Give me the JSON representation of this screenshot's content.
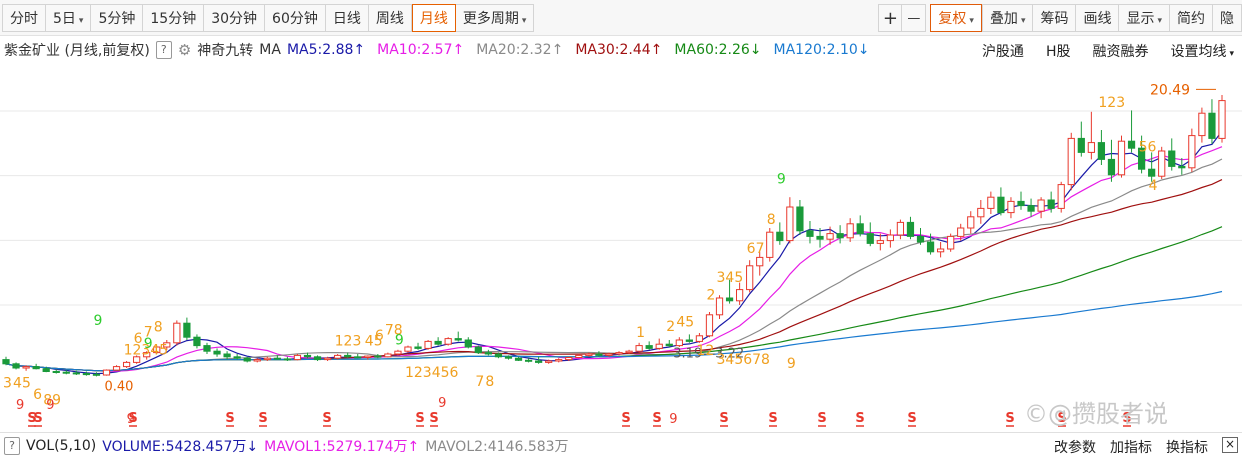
{
  "toolbar": {
    "items": [
      {
        "label": "分时",
        "caret": false,
        "active": false
      },
      {
        "label": "5日",
        "caret": true,
        "active": false
      },
      {
        "label": "5分钟",
        "caret": false,
        "active": false
      },
      {
        "label": "15分钟",
        "caret": false,
        "active": false
      },
      {
        "label": "30分钟",
        "caret": false,
        "active": false
      },
      {
        "label": "60分钟",
        "caret": false,
        "active": false
      },
      {
        "label": "日线",
        "caret": false,
        "active": false
      },
      {
        "label": "周线",
        "caret": false,
        "active": false
      },
      {
        "label": "月线",
        "caret": false,
        "active": true
      },
      {
        "label": "更多周期",
        "caret": true,
        "active": false
      }
    ],
    "right_items": [
      {
        "label": "复权",
        "caret": true
      },
      {
        "label": "叠加",
        "caret": true
      },
      {
        "label": "筹码",
        "caret": false
      },
      {
        "label": "画线",
        "caret": false
      },
      {
        "label": "显示",
        "caret": true
      },
      {
        "label": "简约",
        "caret": false
      },
      {
        "label": "隐",
        "caret": false
      }
    ],
    "plus": "+",
    "minus": "—"
  },
  "legend": {
    "title": "紫金矿业 (月线,前复权)",
    "help": "?",
    "indicator": "神奇九转",
    "ma_label": "MA",
    "ma": [
      {
        "text": "MA5:2.88",
        "arrow": "↑",
        "color": "#1a1aa8"
      },
      {
        "text": "MA10:2.57",
        "arrow": "↑",
        "color": "#e61ee6"
      },
      {
        "text": "MA20:2.32",
        "arrow": "↑",
        "color": "#8a8a8a"
      },
      {
        "text": "MA30:2.44",
        "arrow": "↑",
        "color": "#a01010"
      },
      {
        "text": "MA60:2.26",
        "arrow": "↓",
        "color": "#178a17"
      },
      {
        "text": "MA120:2.10",
        "arrow": "↓",
        "color": "#1a7ad0"
      }
    ],
    "right": [
      "沪股通",
      "H股",
      "融资融券",
      "设置均线"
    ]
  },
  "volume": {
    "help": "?",
    "label": "VOL(5,10)",
    "volume": "VOLUME:5428.457万",
    "volume_arrow": "↓",
    "mavol1": "MAVOL1:5279.174万",
    "mavol1_arrow": "↑",
    "mavol2": "MAVOL2:4146.583万",
    "right": [
      "改参数",
      "加指标",
      "换指标"
    ],
    "close": "×"
  },
  "watermark": "©@攒股者说",
  "colors": {
    "up": "#e8382c",
    "down": "#1a9a3a",
    "active": "#e66000",
    "seq_orange": "#f0a020",
    "seq_green": "#2ecc2e",
    "s_mark": "#e8382c"
  },
  "chart_data": {
    "type": "candlestick",
    "title": "紫金矿业 (月线,前复权)",
    "ylim": [
      0,
      22
    ],
    "annotations": {
      "max_label": "20.49",
      "min_labels": [
        "0.40",
        "3.19",
        "3.22"
      ]
    },
    "ohlc": [
      [
        1.6,
        1.8,
        1.2,
        1.3
      ],
      [
        1.3,
        1.4,
        0.9,
        1.0
      ],
      [
        1.0,
        1.2,
        0.8,
        1.1
      ],
      [
        1.1,
        1.3,
        0.9,
        0.95
      ],
      [
        0.95,
        1.1,
        0.7,
        0.75
      ],
      [
        0.75,
        0.9,
        0.6,
        0.7
      ],
      [
        0.7,
        0.85,
        0.55,
        0.65
      ],
      [
        0.65,
        0.8,
        0.5,
        0.6
      ],
      [
        0.6,
        0.75,
        0.45,
        0.55
      ],
      [
        0.55,
        0.7,
        0.4,
        0.5
      ],
      [
        0.5,
        0.9,
        0.45,
        0.85
      ],
      [
        0.85,
        1.2,
        0.8,
        1.1
      ],
      [
        1.1,
        1.5,
        1.0,
        1.4
      ],
      [
        1.4,
        1.9,
        1.3,
        1.8
      ],
      [
        1.8,
        2.2,
        1.6,
        2.1
      ],
      [
        2.1,
        2.6,
        2.0,
        2.5
      ],
      [
        2.5,
        3.0,
        2.3,
        2.8
      ],
      [
        2.8,
        4.4,
        2.6,
        4.2
      ],
      [
        4.2,
        4.6,
        3.0,
        3.2
      ],
      [
        3.2,
        3.4,
        2.4,
        2.6
      ],
      [
        2.6,
        2.8,
        2.0,
        2.2
      ],
      [
        2.2,
        2.4,
        1.8,
        2.0
      ],
      [
        2.0,
        2.2,
        1.6,
        1.8
      ],
      [
        1.8,
        2.0,
        1.6,
        1.7
      ],
      [
        1.7,
        1.8,
        1.4,
        1.5
      ],
      [
        1.5,
        1.7,
        1.4,
        1.6
      ],
      [
        1.6,
        1.8,
        1.5,
        1.7
      ],
      [
        1.7,
        1.9,
        1.6,
        1.65
      ],
      [
        1.65,
        1.8,
        1.5,
        1.6
      ],
      [
        1.6,
        2.0,
        1.55,
        1.9
      ],
      [
        1.9,
        2.1,
        1.7,
        1.8
      ],
      [
        1.8,
        1.9,
        1.5,
        1.6
      ],
      [
        1.6,
        1.8,
        1.5,
        1.7
      ],
      [
        1.7,
        2.0,
        1.6,
        1.9
      ],
      [
        1.9,
        2.1,
        1.7,
        1.8
      ],
      [
        1.8,
        2.0,
        1.7,
        1.75
      ],
      [
        1.75,
        1.9,
        1.6,
        1.85
      ],
      [
        1.85,
        2.0,
        1.7,
        1.8
      ],
      [
        1.8,
        2.1,
        1.75,
        2.0
      ],
      [
        2.0,
        2.3,
        1.9,
        2.2
      ],
      [
        2.2,
        2.6,
        2.1,
        2.5
      ],
      [
        2.5,
        2.8,
        2.3,
        2.4
      ],
      [
        2.4,
        3.0,
        2.3,
        2.9
      ],
      [
        2.9,
        3.2,
        2.6,
        2.7
      ],
      [
        2.7,
        3.2,
        2.6,
        3.1
      ],
      [
        3.1,
        3.6,
        2.9,
        3.0
      ],
      [
        3.0,
        3.2,
        2.4,
        2.5
      ],
      [
        2.5,
        2.6,
        2.0,
        2.1
      ],
      [
        2.1,
        2.3,
        1.9,
        2.0
      ],
      [
        2.0,
        2.1,
        1.7,
        1.8
      ],
      [
        1.8,
        1.9,
        1.6,
        1.7
      ],
      [
        1.7,
        1.8,
        1.5,
        1.55
      ],
      [
        1.55,
        1.7,
        1.4,
        1.5
      ],
      [
        1.5,
        1.8,
        1.3,
        1.4
      ],
      [
        1.4,
        1.6,
        1.3,
        1.5
      ],
      [
        1.5,
        1.7,
        1.4,
        1.6
      ],
      [
        1.6,
        1.8,
        1.5,
        1.75
      ],
      [
        1.75,
        2.0,
        1.7,
        1.9
      ],
      [
        1.9,
        2.1,
        1.8,
        2.0
      ],
      [
        2.0,
        2.2,
        1.8,
        1.9
      ],
      [
        1.9,
        2.1,
        1.8,
        2.0
      ],
      [
        2.0,
        2.2,
        1.9,
        2.1
      ],
      [
        2.1,
        2.3,
        2.0,
        2.2
      ],
      [
        2.2,
        2.8,
        2.1,
        2.6
      ],
      [
        2.6,
        2.9,
        2.3,
        2.4
      ],
      [
        2.4,
        3.1,
        2.3,
        2.7
      ],
      [
        2.7,
        3.0,
        2.5,
        2.6
      ],
      [
        2.6,
        3.2,
        2.5,
        3.0
      ],
      [
        3.0,
        3.4,
        2.8,
        2.9
      ],
      [
        2.9,
        3.5,
        2.8,
        3.3
      ],
      [
        3.3,
        5.0,
        3.2,
        4.8
      ],
      [
        4.8,
        6.2,
        4.5,
        6.0
      ],
      [
        6.0,
        7.3,
        5.6,
        5.8
      ],
      [
        5.8,
        7.1,
        5.5,
        6.6
      ],
      [
        6.6,
        8.7,
        6.4,
        8.3
      ],
      [
        8.3,
        9.3,
        7.6,
        8.9
      ],
      [
        8.9,
        11.0,
        8.6,
        10.7
      ],
      [
        10.7,
        11.4,
        9.8,
        10.1
      ],
      [
        10.1,
        13.2,
        9.9,
        12.5
      ],
      [
        12.5,
        13.0,
        10.5,
        10.8
      ],
      [
        10.8,
        11.5,
        9.9,
        10.4
      ],
      [
        10.4,
        11.0,
        9.6,
        10.2
      ],
      [
        10.2,
        11.1,
        9.8,
        10.6
      ],
      [
        10.6,
        11.2,
        9.9,
        10.3
      ],
      [
        10.3,
        11.7,
        10.0,
        11.3
      ],
      [
        11.3,
        11.9,
        10.4,
        10.6
      ],
      [
        10.6,
        11.4,
        9.7,
        9.9
      ],
      [
        9.9,
        10.6,
        9.4,
        10.1
      ],
      [
        10.1,
        10.9,
        9.6,
        10.5
      ],
      [
        10.5,
        11.6,
        10.2,
        11.4
      ],
      [
        11.4,
        11.8,
        10.2,
        10.4
      ],
      [
        10.4,
        11.0,
        9.8,
        10.0
      ],
      [
        10.0,
        10.6,
        9.1,
        9.3
      ],
      [
        9.3,
        10.0,
        8.9,
        9.5
      ],
      [
        9.5,
        10.6,
        9.3,
        10.4
      ],
      [
        10.4,
        11.3,
        10.1,
        11.0
      ],
      [
        11.0,
        12.2,
        10.6,
        11.8
      ],
      [
        11.8,
        13.0,
        11.3,
        12.4
      ],
      [
        12.4,
        13.6,
        12.0,
        13.2
      ],
      [
        13.2,
        13.9,
        11.9,
        12.1
      ],
      [
        12.1,
        13.2,
        11.7,
        12.9
      ],
      [
        12.9,
        13.6,
        12.3,
        12.6
      ],
      [
        12.6,
        13.1,
        11.8,
        12.2
      ],
      [
        12.2,
        13.2,
        11.7,
        13.0
      ],
      [
        13.0,
        13.6,
        12.1,
        12.4
      ],
      [
        12.4,
        14.3,
        12.1,
        14.1
      ],
      [
        14.1,
        17.8,
        13.7,
        17.4
      ],
      [
        17.4,
        18.6,
        16.1,
        16.4
      ],
      [
        16.4,
        19.3,
        15.9,
        17.1
      ],
      [
        17.1,
        18.0,
        15.5,
        15.9
      ],
      [
        15.9,
        17.3,
        14.3,
        14.8
      ],
      [
        14.8,
        17.6,
        14.6,
        17.2
      ],
      [
        17.2,
        19.4,
        16.4,
        16.7
      ],
      [
        16.7,
        17.6,
        14.9,
        15.2
      ],
      [
        15.2,
        16.4,
        14.3,
        14.7
      ],
      [
        14.7,
        16.8,
        14.5,
        16.5
      ],
      [
        16.5,
        17.4,
        15.1,
        15.4
      ],
      [
        15.4,
        16.0,
        14.8,
        15.3
      ],
      [
        15.3,
        18.1,
        15.0,
        17.6
      ],
      [
        17.6,
        19.6,
        17.1,
        19.2
      ],
      [
        19.2,
        20.2,
        17.0,
        17.4
      ],
      [
        17.4,
        20.5,
        17.1,
        20.1
      ]
    ]
  }
}
